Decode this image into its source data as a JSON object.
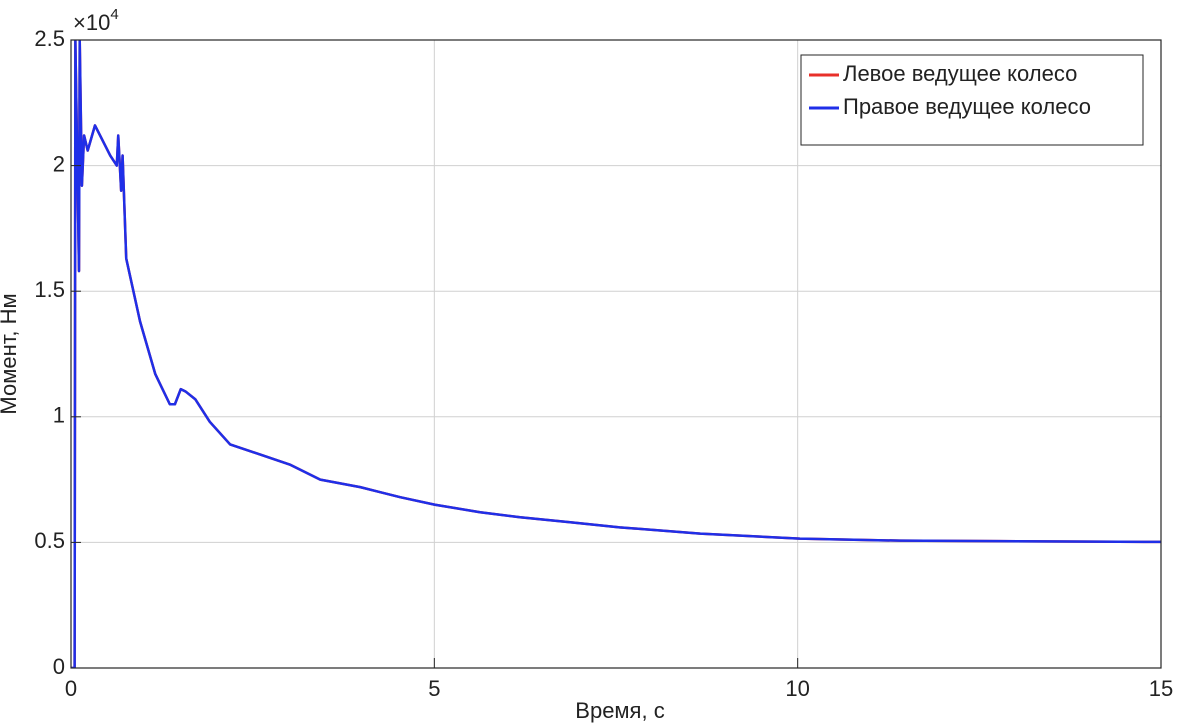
{
  "chart_data": {
    "type": "line",
    "xlabel": "Время, с",
    "ylabel": "Момент, Нм",
    "y_multiplier": {
      "base": "×10",
      "exponent": "4"
    },
    "x": [
      0,
      0.05,
      0.06,
      0.11,
      0.12,
      0.15,
      0.18,
      0.23,
      0.33,
      0.4,
      0.54,
      0.63,
      0.65,
      0.69,
      0.71,
      0.76,
      0.95,
      1.16,
      1.36,
      1.43,
      1.51,
      1.58,
      1.71,
      1.91,
      2.19,
      2.6,
      3.01,
      3.43,
      3.98,
      4.53,
      5.01,
      5.63,
      6.18,
      6.87,
      7.55,
      8.66,
      10.03,
      11.41,
      12.78,
      15
    ],
    "series": [
      {
        "name": "Левое ведущее колесо",
        "color": "#e8302a",
        "values": [
          0,
          0,
          2.5,
          1.58,
          2.5,
          1.92,
          2.12,
          2.06,
          2.16,
          2.12,
          2.04,
          2.0,
          2.12,
          1.9,
          2.04,
          1.63,
          1.38,
          1.17,
          1.05,
          1.05,
          1.11,
          1.1,
          1.07,
          0.98,
          0.89,
          0.85,
          0.81,
          0.75,
          0.72,
          0.68,
          0.65,
          0.62,
          0.6,
          0.58,
          0.56,
          0.535,
          0.515,
          0.507,
          0.505,
          0.502
        ]
      },
      {
        "name": "Правое ведущее колесо",
        "color": "#1f2fe8",
        "values": [
          0,
          0,
          2.5,
          1.58,
          2.5,
          1.92,
          2.12,
          2.06,
          2.16,
          2.12,
          2.04,
          2.0,
          2.12,
          1.9,
          2.04,
          1.63,
          1.38,
          1.17,
          1.05,
          1.05,
          1.11,
          1.1,
          1.07,
          0.98,
          0.89,
          0.85,
          0.81,
          0.75,
          0.72,
          0.68,
          0.65,
          0.62,
          0.6,
          0.58,
          0.56,
          0.535,
          0.515,
          0.507,
          0.505,
          0.502
        ]
      }
    ],
    "xlim": [
      0,
      15
    ],
    "xticks": [
      0,
      5,
      10,
      15
    ],
    "ylim": [
      0,
      2.5
    ],
    "yticks": [
      0,
      0.5,
      1,
      1.5,
      2,
      2.5
    ],
    "grid": true,
    "legend": "northeast"
  }
}
